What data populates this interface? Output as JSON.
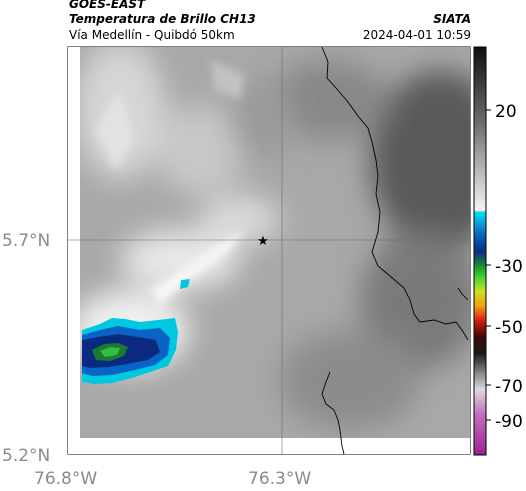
{
  "header": {
    "satellite": "GOES-EAST",
    "product": "Temperatura de Brillo CH13",
    "organization": "SIATA",
    "location": "Vía Medellín - Quibdó 50km",
    "datetime": "2024-04-01 10:59"
  },
  "map": {
    "x_ticks": [
      "76.8°W",
      "76.3°W"
    ],
    "y_ticks": [
      "5.7°N",
      "5.2°N"
    ],
    "marker": "star-marker",
    "colors": {
      "cold_cloud_outer": "#00c8e0",
      "cold_cloud_mid": "#0a64c8",
      "cold_cloud_inner": "#0a2a80",
      "cold_cloud_core": "#22a040"
    }
  },
  "colorbar": {
    "tick_labels": [
      "20",
      "-30",
      "-50",
      "-70",
      "-90"
    ]
  }
}
